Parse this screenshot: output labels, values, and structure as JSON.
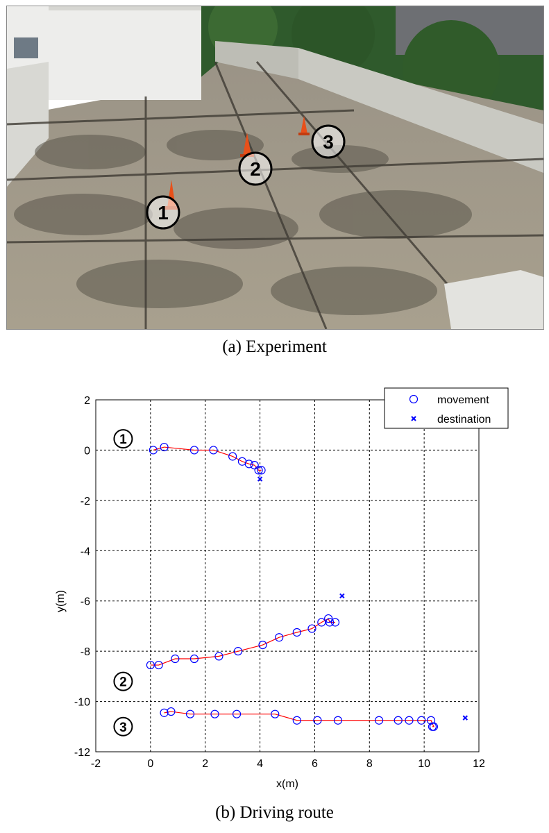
{
  "captions": {
    "a": "(a)  Experiment",
    "b": "(b)  Driving  route"
  },
  "photo": {
    "markers": [
      "1",
      "2",
      "3"
    ]
  },
  "colors": {
    "movement": "#0000ff",
    "destination": "#0000ff",
    "route_line": "#ff0000",
    "cone": "#e8501a"
  },
  "chart_data": {
    "type": "scatter",
    "xlabel": "x(m)",
    "ylabel": "y(m)",
    "xlim": [
      -2,
      12
    ],
    "ylim": [
      -12,
      2
    ],
    "xticks": [
      -2,
      0,
      2,
      4,
      6,
      8,
      10,
      12
    ],
    "yticks": [
      2,
      0,
      -2,
      -4,
      -6,
      -8,
      -10,
      -12
    ],
    "grid": true,
    "grid_style": "dashed",
    "legend_position": "top-right",
    "legend": [
      "movement",
      "destination"
    ],
    "annotations": [
      {
        "label": "1",
        "x": -1.0,
        "y": 0.45
      },
      {
        "label": "2",
        "x": -1.0,
        "y": -9.2
      },
      {
        "label": "3",
        "x": -1.0,
        "y": -11.0
      }
    ],
    "routes": [
      {
        "marker": "1",
        "movement": [
          [
            0.1,
            0.0
          ],
          [
            0.5,
            0.12
          ],
          [
            1.6,
            0.0
          ],
          [
            2.3,
            0.0
          ],
          [
            3.0,
            -0.25
          ],
          [
            3.35,
            -0.45
          ],
          [
            3.6,
            -0.55
          ],
          [
            3.8,
            -0.6
          ],
          [
            3.95,
            -0.8
          ],
          [
            4.05,
            -0.8
          ]
        ],
        "destination": [
          4.0,
          -1.15
        ]
      },
      {
        "marker": "2",
        "movement": [
          [
            0.0,
            -8.55
          ],
          [
            0.3,
            -8.55
          ],
          [
            0.9,
            -8.3
          ],
          [
            1.6,
            -8.3
          ],
          [
            2.5,
            -8.2
          ],
          [
            3.2,
            -8.0
          ],
          [
            4.1,
            -7.75
          ],
          [
            4.7,
            -7.45
          ],
          [
            5.35,
            -7.25
          ],
          [
            5.9,
            -7.1
          ],
          [
            6.25,
            -6.85
          ],
          [
            6.5,
            -6.7
          ],
          [
            6.55,
            -6.85
          ],
          [
            6.75,
            -6.85
          ]
        ],
        "destination": [
          7.0,
          -5.8
        ]
      },
      {
        "marker": "3",
        "movement": [
          [
            0.5,
            -10.45
          ],
          [
            0.75,
            -10.4
          ],
          [
            1.45,
            -10.5
          ],
          [
            2.35,
            -10.5
          ],
          [
            3.15,
            -10.5
          ],
          [
            4.55,
            -10.5
          ],
          [
            5.35,
            -10.75
          ],
          [
            6.1,
            -10.75
          ],
          [
            6.85,
            -10.75
          ],
          [
            8.35,
            -10.75
          ],
          [
            9.05,
            -10.75
          ],
          [
            9.45,
            -10.75
          ],
          [
            9.9,
            -10.75
          ],
          [
            10.25,
            -10.75
          ],
          [
            10.35,
            -11.0
          ],
          [
            10.3,
            -11.0
          ]
        ],
        "destination": [
          11.5,
          -10.65
        ]
      }
    ]
  }
}
